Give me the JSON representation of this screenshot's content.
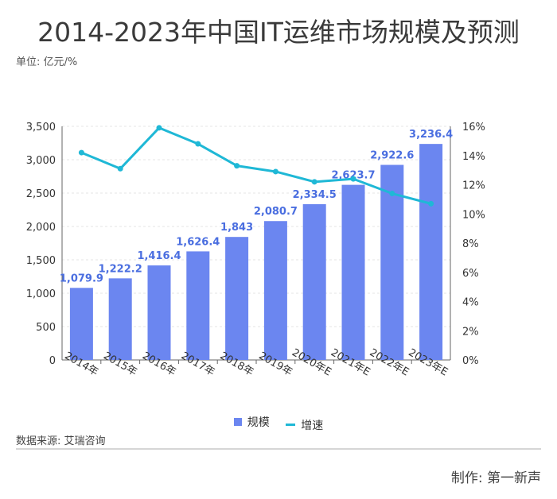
{
  "title": "2014-2023年中国IT运维市场规模及预测",
  "unit": "单位: 亿元/%",
  "source": "数据来源: 艾瑞咨询",
  "credit": "制作:  第一新声",
  "colors": {
    "bar": "#6b86f0",
    "bar_label": "#4a6ee0",
    "line": "#1fb8d6",
    "grid": "#e6e6e6",
    "axis": "#666666"
  },
  "chart_data": {
    "type": "bar",
    "categories": [
      "2014年",
      "2015年",
      "2016年",
      "2017年",
      "2018年",
      "2019年",
      "2020年E",
      "2021年E",
      "2022年E",
      "2023年E"
    ],
    "series": [
      {
        "name": "规模",
        "type": "bar",
        "axis": "left",
        "values": [
          1079.9,
          1222.2,
          1416.4,
          1626.4,
          1843,
          2080.7,
          2334.5,
          2623.7,
          2922.6,
          3236.4
        ],
        "labels": [
          "1,079.9",
          "1,222.2",
          "1,416.4",
          "1,626.4",
          "1,843",
          "2,080.7",
          "2,334.5",
          "2,623.7",
          "2,922.6",
          "3,236.4"
        ]
      },
      {
        "name": "增速",
        "type": "line",
        "axis": "right",
        "values": [
          14.2,
          13.1,
          15.9,
          14.8,
          13.3,
          12.9,
          12.2,
          12.4,
          11.4,
          10.7
        ]
      }
    ],
    "y_left": {
      "ylim": [
        0,
        3500
      ],
      "ticks": [
        "0",
        "500",
        "1,000",
        "1,500",
        "2,000",
        "2,500",
        "3,000",
        "3,500"
      ]
    },
    "y_right": {
      "ylim": [
        0,
        16
      ],
      "ticks": [
        "0%",
        "2%",
        "4%",
        "6%",
        "8%",
        "10%",
        "12%",
        "14%",
        "16%"
      ]
    },
    "legend": "bottom",
    "grid": true
  }
}
